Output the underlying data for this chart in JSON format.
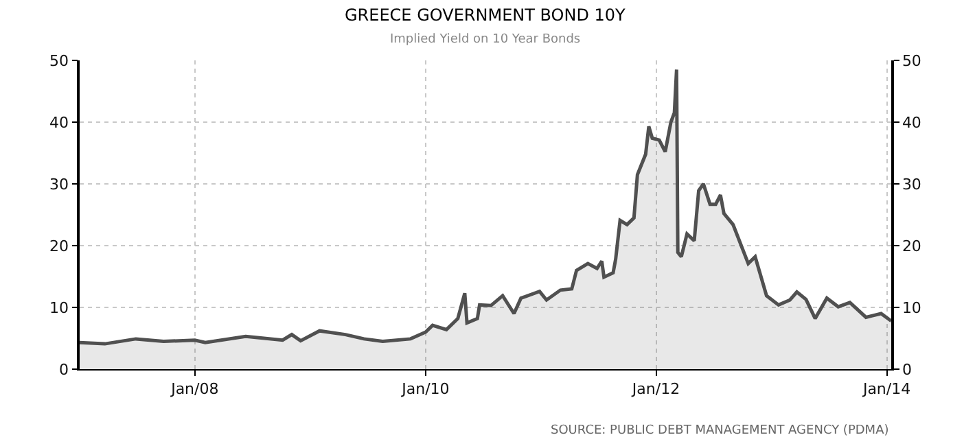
{
  "chart_data": {
    "type": "area",
    "title": "GREECE GOVERNMENT BOND 10Y",
    "subtitle": "Implied Yield on 10 Year Bonds",
    "annotations": [
      "SOURCE: PUBLIC DEBT MANAGEMENT AGENCY (PDMA)"
    ],
    "x": [
      "2007-01-01",
      "2007-03-22",
      "2007-06-28",
      "2007-09-24",
      "2008-01-01",
      "2008-02-03",
      "2008-06-10",
      "2008-10-05",
      "2008-11-03",
      "2008-12-01",
      "2009-01-30",
      "2009-04-22",
      "2009-06-20",
      "2009-08-18",
      "2009-11-14",
      "2010-01-01",
      "2010-01-23",
      "2010-03-08",
      "2010-04-13",
      "2010-05-05",
      "2010-05-12",
      "2010-06-14",
      "2010-06-21",
      "2010-07-27",
      "2010-09-02",
      "2010-10-08",
      "2010-10-30",
      "2010-12-28",
      "2011-01-19",
      "2011-03-04",
      "2011-04-09",
      "2011-04-24",
      "2011-05-30",
      "2011-06-28",
      "2011-07-13",
      "2011-07-20",
      "2011-08-18",
      "2011-08-26",
      "2011-09-09",
      "2011-10-01",
      "2011-10-23",
      "2011-11-03",
      "2011-11-29",
      "2011-12-09",
      "2011-12-20",
      "2012-01-11",
      "2012-01-30",
      "2012-02-17",
      "2012-02-28",
      "2012-03-06",
      "2012-03-10",
      "2012-03-21",
      "2012-04-08",
      "2012-05-01",
      "2012-05-15",
      "2012-05-30",
      "2012-06-20",
      "2012-07-08",
      "2012-07-23",
      "2012-08-03",
      "2012-09-01",
      "2012-10-19",
      "2012-11-10",
      "2012-12-16",
      "2013-01-23",
      "2013-02-28",
      "2013-03-22",
      "2013-04-20",
      "2013-05-19",
      "2013-06-25",
      "2013-07-31",
      "2013-09-06",
      "2013-10-27",
      "2013-12-14",
      "2014-01-15"
    ],
    "series": [
      {
        "color": "#505050",
        "values": [
          4.3,
          4.1,
          4.9,
          4.5,
          4.7,
          4.3,
          5.3,
          4.7,
          5.6,
          4.6,
          6.2,
          5.6,
          4.9,
          4.5,
          4.9,
          6.0,
          7.1,
          6.4,
          8.2,
          12.3,
          7.5,
          8.2,
          10.4,
          10.3,
          11.9,
          9.0,
          11.5,
          12.6,
          11.2,
          12.8,
          13.0,
          16.0,
          17.1,
          16.3,
          17.5,
          14.9,
          15.6,
          17.8,
          24.1,
          23.4,
          24.5,
          31.5,
          34.8,
          39.3,
          37.4,
          37.1,
          35.2,
          40.0,
          41.5,
          48.5,
          18.9,
          18.2,
          21.9,
          20.8,
          28.9,
          30.0,
          26.7,
          26.7,
          28.2,
          25.2,
          23.4,
          17.1,
          18.2,
          11.9,
          10.4,
          11.2,
          12.5,
          11.3,
          8.2,
          11.5,
          10.1,
          10.8,
          8.4,
          9.0,
          7.8
        ]
      }
    ],
    "xlim": [
      "2007-01-01",
      "2014-01-15"
    ],
    "xticks": [
      {
        "value": "2008-01-01",
        "label": "Jan/08"
      },
      {
        "value": "2010-01-01",
        "label": "Jan/10"
      },
      {
        "value": "2012-01-01",
        "label": "Jan/12"
      },
      {
        "value": "2014-01-01",
        "label": "Jan/14"
      }
    ],
    "ylim": [
      0,
      50
    ],
    "yticks": [
      0,
      10,
      20,
      30,
      40,
      50
    ],
    "y2lim": [
      0,
      50
    ],
    "y2ticks": [
      0,
      10,
      20,
      30,
      40,
      50
    ],
    "grid": true
  }
}
